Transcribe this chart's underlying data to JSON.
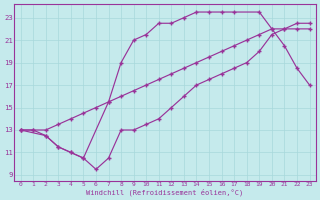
{
  "bg_color": "#c5eaec",
  "line_color": "#993399",
  "grid_color": "#a8d8db",
  "xlabel": "Windchill (Refroidissement éolien,°C)",
  "xlim": [
    -0.5,
    23.5
  ],
  "ylim": [
    8.5,
    24.2
  ],
  "xticks": [
    0,
    1,
    2,
    3,
    4,
    5,
    6,
    7,
    8,
    9,
    10,
    11,
    12,
    13,
    14,
    15,
    16,
    17,
    18,
    19,
    20,
    21,
    22,
    23
  ],
  "yticks": [
    9,
    11,
    13,
    15,
    17,
    19,
    21,
    23
  ],
  "line1_x": [
    0,
    1,
    2,
    3,
    4,
    5,
    6,
    7,
    8,
    9,
    10,
    11,
    12,
    13,
    14,
    15,
    16,
    17,
    18,
    19,
    20,
    21,
    22,
    23
  ],
  "line1_y": [
    13,
    13,
    12.5,
    11.5,
    11.0,
    10.5,
    9.5,
    10.5,
    13.0,
    13.0,
    13.5,
    14.0,
    15.0,
    16.0,
    17.0,
    17.5,
    18.0,
    18.5,
    19.0,
    20.0,
    21.5,
    22.0,
    22.0,
    22.0
  ],
  "line2_x": [
    0,
    2,
    3,
    4,
    5,
    7,
    8,
    9,
    10,
    11,
    12,
    13,
    14,
    15,
    16,
    17,
    19,
    20,
    21,
    22,
    23
  ],
  "line2_y": [
    13,
    12.5,
    11.5,
    11.0,
    10.5,
    15.5,
    19.0,
    21.0,
    21.5,
    22.5,
    22.5,
    23.0,
    23.5,
    23.5,
    23.5,
    23.5,
    23.5,
    22.0,
    20.5,
    18.5,
    17.0
  ],
  "line3_x": [
    0,
    1,
    2,
    3,
    4,
    5,
    6,
    7,
    8,
    9,
    10,
    11,
    12,
    13,
    14,
    15,
    16,
    17,
    18,
    19,
    20,
    21,
    22,
    23
  ],
  "line3_y": [
    13,
    13,
    13,
    13.5,
    14.0,
    14.5,
    15.0,
    15.5,
    16.0,
    16.5,
    17.0,
    17.5,
    18.0,
    18.5,
    19.0,
    19.5,
    20.0,
    20.5,
    21.0,
    21.5,
    22.0,
    22.0,
    22.5,
    22.5
  ]
}
